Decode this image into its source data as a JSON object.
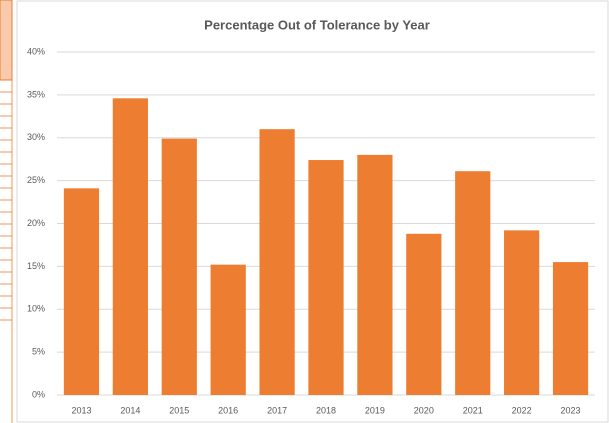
{
  "chart_data": {
    "type": "bar",
    "title": "Percentage Out of Tolerance by Year",
    "categories": [
      "2013",
      "2014",
      "2015",
      "2016",
      "2017",
      "2018",
      "2019",
      "2020",
      "2021",
      "2022",
      "2023"
    ],
    "values": [
      24.1,
      34.6,
      29.9,
      15.2,
      31.0,
      27.4,
      28.0,
      18.8,
      26.1,
      19.2,
      15.5
    ],
    "color": "#ed7d31",
    "ylim": [
      0,
      40
    ],
    "yticks": [
      {
        "value": 0,
        "label": "0%"
      },
      {
        "value": 5,
        "label": "5%"
      },
      {
        "value": 10,
        "label": "10%"
      },
      {
        "value": 15,
        "label": "15%"
      },
      {
        "value": 20,
        "label": "20%"
      },
      {
        "value": 25,
        "label": "25%"
      },
      {
        "value": 30,
        "label": "30%"
      },
      {
        "value": 35,
        "label": "35%"
      },
      {
        "value": 40,
        "label": "40%"
      }
    ],
    "grid": true
  }
}
